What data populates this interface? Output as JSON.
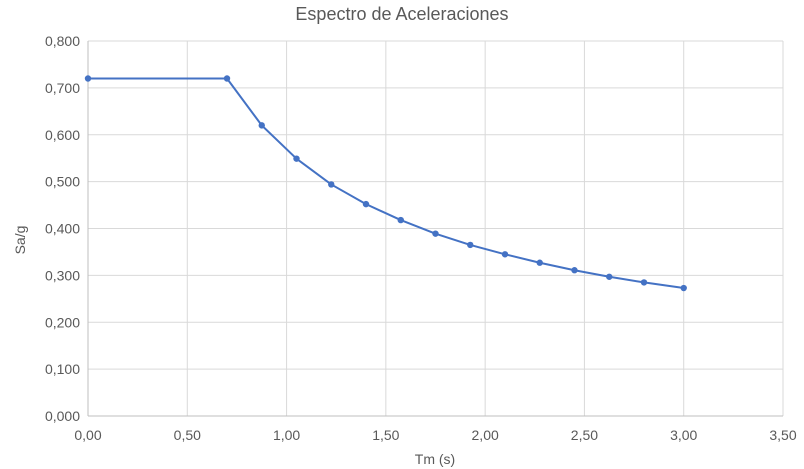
{
  "chart_data": {
    "type": "scatter",
    "title": "Espectro de Aceleraciones",
    "xlabel": "Tm (s)",
    "ylabel": "Sa/g",
    "xlim": [
      0,
      3.5
    ],
    "ylim": [
      0,
      0.8
    ],
    "x_ticks": [
      "0,00",
      "0,50",
      "1,00",
      "1,50",
      "2,00",
      "2,50",
      "3,00",
      "3,50"
    ],
    "y_ticks": [
      "0,000",
      "0,100",
      "0,200",
      "0,300",
      "0,400",
      "0,500",
      "0,600",
      "0,700",
      "0,800"
    ],
    "grid": true,
    "legend": "none",
    "series": [
      {
        "color": "#4472c4",
        "x": [
          0.0,
          0.7,
          0.875,
          1.05,
          1.225,
          1.4,
          1.575,
          1.75,
          1.925,
          2.1,
          2.275,
          2.45,
          2.625,
          2.8,
          3.0
        ],
        "y": [
          0.72,
          0.72,
          0.62,
          0.549,
          0.494,
          0.452,
          0.418,
          0.389,
          0.365,
          0.345,
          0.327,
          0.311,
          0.297,
          0.285,
          0.273
        ]
      }
    ]
  }
}
